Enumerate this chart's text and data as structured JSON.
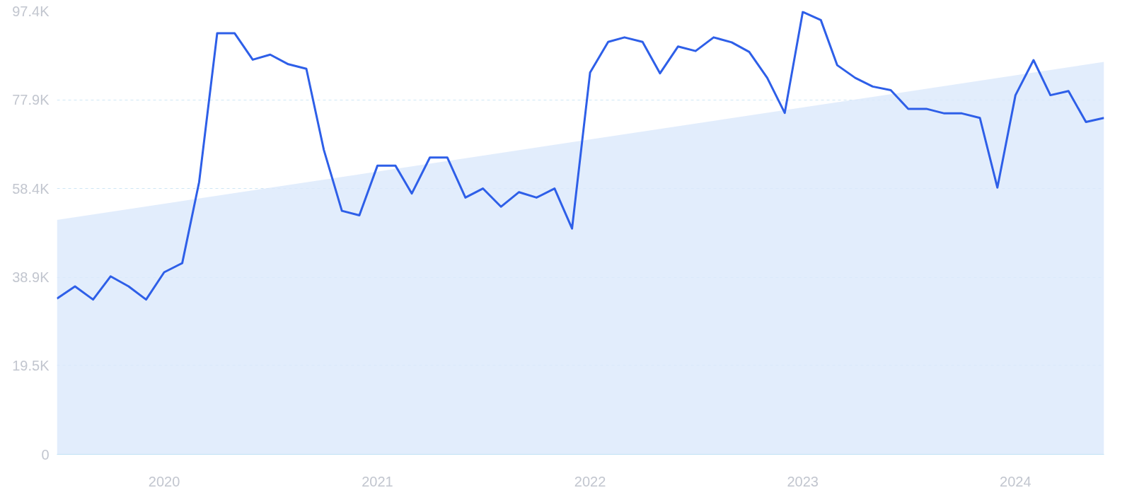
{
  "chart_data": {
    "type": "line",
    "x": [
      "2019-07",
      "2019-08",
      "2019-09",
      "2019-10",
      "2019-11",
      "2019-12",
      "2020-01",
      "2020-02",
      "2020-03",
      "2020-04",
      "2020-05",
      "2020-06",
      "2020-07",
      "2020-08",
      "2020-09",
      "2020-10",
      "2020-11",
      "2020-12",
      "2021-01",
      "2021-02",
      "2021-03",
      "2021-04",
      "2021-05",
      "2021-06",
      "2021-07",
      "2021-08",
      "2021-09",
      "2021-10",
      "2021-11",
      "2021-12",
      "2022-01",
      "2022-02",
      "2022-03",
      "2022-04",
      "2022-05",
      "2022-06",
      "2022-07",
      "2022-08",
      "2022-09",
      "2022-10",
      "2022-11",
      "2022-12",
      "2023-01",
      "2023-02",
      "2023-03",
      "2023-04",
      "2023-05",
      "2023-06",
      "2023-07",
      "2023-08",
      "2023-09",
      "2023-10",
      "2023-11",
      "2023-12",
      "2024-01",
      "2024-02",
      "2024-03",
      "2024-04",
      "2024-05",
      "2024-06"
    ],
    "series": [
      {
        "type": "area",
        "color": "#dbe9fb",
        "x": [
          "2019-07",
          "2024-06"
        ],
        "values": [
          51500,
          86200
        ]
      },
      {
        "color": "#2e5fe8",
        "values": [
          34200,
          36900,
          34000,
          39100,
          36900,
          34000,
          40000,
          42000,
          59800,
          92500,
          92500,
          86700,
          87800,
          85700,
          84700,
          66900,
          53500,
          52500,
          63400,
          63400,
          57300,
          65200,
          65200,
          56400,
          58400,
          54400,
          57600,
          56400,
          58400,
          49600,
          83900,
          90600,
          91600,
          90600,
          83700,
          89600,
          88600,
          91600,
          90500,
          88400,
          82700,
          75000,
          97200,
          95400,
          85500,
          82700,
          80800,
          80000,
          75900,
          75900,
          74900,
          74900,
          73900,
          58600,
          78900,
          86600,
          78900,
          79800,
          73000,
          73900
        ]
      }
    ],
    "xlim": [
      "2019-07",
      "2024-06"
    ],
    "xticks": [
      "2020",
      "2021",
      "2022",
      "2023",
      "2024"
    ],
    "ylim": [
      0,
      97400
    ],
    "yticks": [
      0,
      {
        "value": 19500,
        "label": "19.5K"
      },
      {
        "value": 38900,
        "label": "38.9K"
      },
      {
        "value": 58400,
        "label": "58.4K"
      },
      {
        "value": 77900,
        "label": "77.9K"
      },
      {
        "value": 97400,
        "label": "97.4K"
      }
    ],
    "grid": "y",
    "marker": "none",
    "line_style": "solid"
  }
}
